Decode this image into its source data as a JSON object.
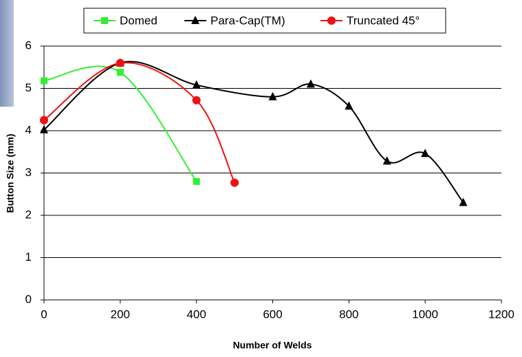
{
  "chart_data": {
    "type": "line",
    "x_label": "Number of Welds",
    "y_label": "Button Size (mm)",
    "xlim": [
      0,
      1200
    ],
    "xticks": [
      0,
      200,
      400,
      600,
      800,
      1000,
      1200
    ],
    "ylim": [
      0,
      6
    ],
    "yticks": [
      0,
      1,
      2,
      3,
      4,
      5,
      6
    ],
    "grid": true,
    "smooth": true,
    "legend": "top",
    "series": [
      {
        "name": "Domed",
        "color": "#33ee33",
        "marker": "square",
        "x": [
          0,
          200,
          400
        ],
        "values": [
          5.18,
          5.38,
          2.8
        ]
      },
      {
        "name": "Para-Cap(TM)",
        "color": "#000000",
        "marker": "triangle",
        "x": [
          0,
          200,
          400,
          600,
          700,
          800,
          900,
          1000,
          1100
        ],
        "values": [
          4.02,
          5.6,
          5.08,
          4.8,
          5.1,
          4.58,
          3.28,
          3.46,
          2.3
        ]
      },
      {
        "name": "Truncated 45°",
        "color": "#ee1111",
        "marker": "circle",
        "x": [
          0,
          200,
          400,
          500
        ],
        "values": [
          4.25,
          5.6,
          4.72,
          2.77
        ]
      }
    ]
  }
}
